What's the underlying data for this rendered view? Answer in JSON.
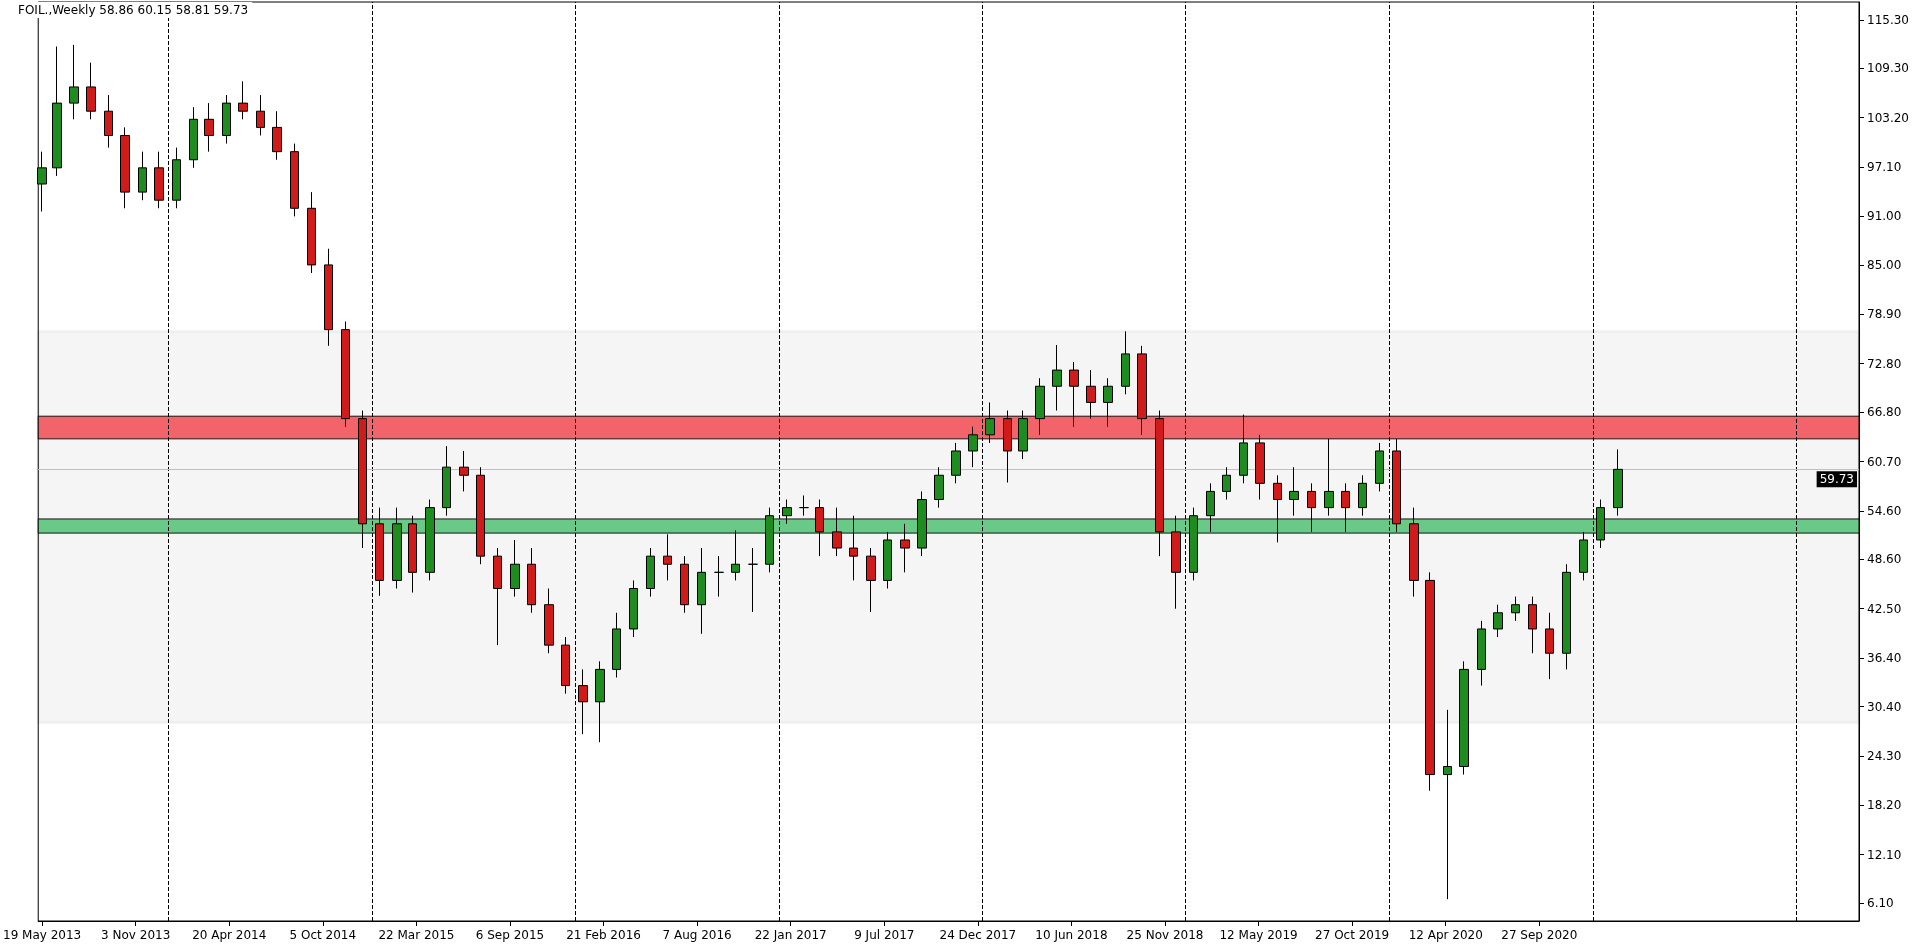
{
  "chart_data": {
    "type": "candlestick",
    "title": "FOIL.,Weekly 58.86 60.15 58.81 59.73",
    "x": [
      "2013-05-19",
      "2013-06-15",
      "2013-07-15",
      "2013-08-15",
      "2013-09-15",
      "2013-10-15",
      "2013-11-15",
      "2013-12-15",
      "2014-01-15",
      "2014-02-15",
      "2014-03-15",
      "2014-04-15",
      "2014-05-15",
      "2014-06-15",
      "2014-07-15",
      "2014-08-15",
      "2014-09-15",
      "2014-10-15",
      "2014-11-15",
      "2014-12-15",
      "2015-01-15",
      "2015-02-15",
      "2015-03-15",
      "2015-04-15",
      "2015-05-15",
      "2015-06-15",
      "2015-07-15",
      "2015-08-15",
      "2015-09-15",
      "2015-10-15",
      "2015-11-15",
      "2015-12-15",
      "2016-01-15",
      "2016-02-15",
      "2016-03-15",
      "2016-04-15",
      "2016-05-15",
      "2016-06-15",
      "2016-07-15",
      "2016-08-15",
      "2016-09-15",
      "2016-10-15",
      "2016-11-15",
      "2016-12-15",
      "2017-01-15",
      "2017-02-15",
      "2017-03-15",
      "2017-04-15",
      "2017-05-15",
      "2017-06-15",
      "2017-07-15",
      "2017-08-15",
      "2017-09-15",
      "2017-10-15",
      "2017-11-15",
      "2017-12-15",
      "2018-01-15",
      "2018-02-15",
      "2018-03-15",
      "2018-04-15",
      "2018-05-15",
      "2018-06-15",
      "2018-07-15",
      "2018-08-15",
      "2018-09-15",
      "2018-10-15",
      "2018-11-15",
      "2018-12-15",
      "2019-01-15",
      "2019-02-15",
      "2019-03-15",
      "2019-04-15",
      "2019-05-15",
      "2019-06-15",
      "2019-07-15",
      "2019-08-15",
      "2019-09-15",
      "2019-10-15",
      "2019-11-15",
      "2019-12-15",
      "2020-01-15",
      "2020-02-15",
      "2020-03-15",
      "2020-04-15",
      "2020-05-15",
      "2020-06-15",
      "2020-07-15",
      "2020-08-15",
      "2020-09-15",
      "2020-10-15",
      "2020-11-15",
      "2020-12-15",
      "2021-01-15",
      "2021-02-15"
    ],
    "ohlc": [
      [
        95,
        99,
        91.6,
        97
      ],
      [
        97,
        112,
        96,
        105
      ],
      [
        105,
        112.2,
        103,
        107
      ],
      [
        107,
        110,
        103,
        104
      ],
      [
        104,
        106,
        99.5,
        101
      ],
      [
        101,
        102,
        92,
        94
      ],
      [
        94,
        99,
        93,
        97
      ],
      [
        97,
        99,
        92,
        93
      ],
      [
        93,
        99.5,
        92,
        98
      ],
      [
        98,
        104.5,
        97,
        103
      ],
      [
        103,
        105,
        99,
        101
      ],
      [
        101,
        106,
        100,
        105
      ],
      [
        105,
        107.7,
        103,
        104
      ],
      [
        104,
        106,
        101,
        102
      ],
      [
        102,
        104,
        98,
        99
      ],
      [
        99,
        100,
        91,
        92
      ],
      [
        92,
        94,
        84,
        85
      ],
      [
        85,
        87,
        75,
        77
      ],
      [
        77,
        78,
        65,
        66
      ],
      [
        66,
        67,
        50,
        53
      ],
      [
        53,
        55,
        44.1,
        46
      ],
      [
        46,
        55,
        45,
        53
      ],
      [
        53,
        54,
        44.5,
        47
      ],
      [
        47,
        56,
        46,
        55
      ],
      [
        55,
        62.6,
        54,
        60
      ],
      [
        60,
        62,
        57,
        59
      ],
      [
        59,
        60,
        48,
        49
      ],
      [
        49,
        50,
        38,
        45
      ],
      [
        45,
        51,
        44,
        48
      ],
      [
        48,
        50,
        42,
        43
      ],
      [
        43,
        45,
        37,
        38
      ],
      [
        38,
        39,
        32,
        33
      ],
      [
        33,
        35,
        27,
        31
      ],
      [
        31,
        36,
        26,
        35
      ],
      [
        35,
        42,
        34,
        40
      ],
      [
        40,
        46,
        39,
        45
      ],
      [
        45,
        50,
        44,
        49
      ],
      [
        49,
        51.7,
        46,
        48
      ],
      [
        48,
        49,
        42,
        43
      ],
      [
        43,
        50,
        39.4,
        47
      ],
      [
        47,
        49,
        44,
        47
      ],
      [
        47,
        52.2,
        46,
        48
      ],
      [
        48,
        50,
        42.1,
        48
      ],
      [
        48,
        55,
        47,
        54
      ],
      [
        54,
        56,
        53,
        55
      ],
      [
        55,
        56.5,
        54,
        55
      ],
      [
        55,
        56,
        49,
        52
      ],
      [
        52,
        55,
        49,
        50
      ],
      [
        50,
        54,
        46,
        49
      ],
      [
        49,
        50,
        42.1,
        46
      ],
      [
        46,
        52,
        45,
        51
      ],
      [
        51,
        53,
        47,
        50
      ],
      [
        50,
        57,
        49,
        56
      ],
      [
        56,
        60,
        55,
        59
      ],
      [
        59,
        63,
        58,
        62
      ],
      [
        62,
        65,
        60,
        64
      ],
      [
        64,
        68,
        63,
        66
      ],
      [
        66,
        67,
        58.1,
        62
      ],
      [
        62,
        67,
        61,
        66
      ],
      [
        66,
        71,
        64,
        70
      ],
      [
        70,
        75.1,
        67,
        72
      ],
      [
        72,
        73,
        65,
        70
      ],
      [
        70,
        72,
        66,
        68
      ],
      [
        68,
        71,
        65,
        70
      ],
      [
        70,
        76.8,
        69,
        74
      ],
      [
        74,
        75,
        64,
        66
      ],
      [
        66,
        67,
        49,
        52
      ],
      [
        52,
        54,
        42.5,
        47
      ],
      [
        47,
        55,
        46,
        54
      ],
      [
        54,
        58,
        52,
        57
      ],
      [
        57,
        60,
        56,
        59
      ],
      [
        59,
        66.5,
        58,
        63
      ],
      [
        63,
        64,
        56,
        58
      ],
      [
        58,
        59,
        50.7,
        56
      ],
      [
        56,
        60,
        54,
        57
      ],
      [
        57,
        58,
        52,
        55
      ],
      [
        55,
        63.5,
        54,
        57
      ],
      [
        57,
        58,
        52,
        55
      ],
      [
        55,
        59,
        54,
        58
      ],
      [
        58,
        63,
        57,
        62
      ],
      [
        62,
        63.5,
        52,
        53
      ],
      [
        53,
        55,
        44,
        46
      ],
      [
        46,
        47,
        20,
        22
      ],
      [
        22,
        30,
        6.6,
        23
      ],
      [
        23,
        36,
        22,
        35
      ],
      [
        35,
        41,
        33,
        40
      ],
      [
        40,
        43,
        39,
        42
      ],
      [
        42,
        44,
        41,
        43
      ],
      [
        43,
        44,
        37,
        40
      ],
      [
        40,
        42,
        33.8,
        37
      ],
      [
        37,
        48,
        35,
        47
      ],
      [
        47,
        52,
        46,
        51
      ],
      [
        51,
        56,
        50,
        55
      ],
      [
        55,
        62.2,
        54,
        59.73
      ]
    ],
    "xlim": [
      "2013-05-12",
      "2022-04-24"
    ],
    "xticks": [
      {
        "value": "2013-05-19",
        "label": "19 May 2013"
      },
      {
        "value": "2013-11-03",
        "label": "3 Nov 2013"
      },
      {
        "value": "2014-04-20",
        "label": "20 Apr 2014"
      },
      {
        "value": "2014-10-05",
        "label": "5 Oct 2014"
      },
      {
        "value": "2015-03-22",
        "label": "22 Mar 2015"
      },
      {
        "value": "2015-09-06",
        "label": "6 Sep 2015"
      },
      {
        "value": "2016-02-21",
        "label": "21 Feb 2016"
      },
      {
        "value": "2016-08-07",
        "label": "7 Aug 2016"
      },
      {
        "value": "2017-01-22",
        "label": "22 Jan 2017"
      },
      {
        "value": "2017-07-09",
        "label": "9 Jul 2017"
      },
      {
        "value": "2017-12-24",
        "label": "24 Dec 2017"
      },
      {
        "value": "2018-06-10",
        "label": "10 Jun 2018"
      },
      {
        "value": "2018-11-25",
        "label": "25 Nov 2018"
      },
      {
        "value": "2019-05-12",
        "label": "12 May 2019"
      },
      {
        "value": "2019-10-27",
        "label": "27 Oct 2019"
      },
      {
        "value": "2020-04-12",
        "label": "12 Apr 2020"
      },
      {
        "value": "2020-09-27",
        "label": "27 Sep 2020"
      }
    ],
    "ylim": [
      3.9,
      117.5
    ],
    "yticks": [
      {
        "value": 6.1,
        "label": "6.10"
      },
      {
        "value": 12.1,
        "label": "12.10"
      },
      {
        "value": 18.2,
        "label": "18.20"
      },
      {
        "value": 24.3,
        "label": "24.30"
      },
      {
        "value": 30.4,
        "label": "30.40"
      },
      {
        "value": 36.4,
        "label": "36.40"
      },
      {
        "value": 42.5,
        "label": "42.50"
      },
      {
        "value": 48.6,
        "label": "48.60"
      },
      {
        "value": 54.6,
        "label": "54.60"
      },
      {
        "value": 60.7,
        "label": "60.70"
      },
      {
        "value": 66.8,
        "label": "66.80"
      },
      {
        "value": 72.8,
        "label": "72.80"
      },
      {
        "value": 78.9,
        "label": "78.90"
      },
      {
        "value": 85,
        "label": "85.00"
      },
      {
        "value": 91,
        "label": "91.00"
      },
      {
        "value": 97.1,
        "label": "97.10"
      },
      {
        "value": 103.2,
        "label": "103.20"
      },
      {
        "value": 109.3,
        "label": "109.30"
      },
      {
        "value": 115.3,
        "label": "115.30"
      }
    ],
    "ref_lines": [
      {
        "axis": "x",
        "value": "2014-01-01",
        "color": "#000000",
        "line_style": "dashed"
      },
      {
        "axis": "x",
        "value": "2015-01-01",
        "color": "#000000",
        "line_style": "dashed"
      },
      {
        "axis": "x",
        "value": "2016-01-01",
        "color": "#000000",
        "line_style": "dashed"
      },
      {
        "axis": "x",
        "value": "2017-01-01",
        "color": "#000000",
        "line_style": "dashed"
      },
      {
        "axis": "x",
        "value": "2018-01-01",
        "color": "#000000",
        "line_style": "dashed"
      },
      {
        "axis": "x",
        "value": "2019-01-01",
        "color": "#000000",
        "line_style": "dashed"
      },
      {
        "axis": "x",
        "value": "2020-01-01",
        "color": "#000000",
        "line_style": "dashed"
      },
      {
        "axis": "x",
        "value": "2021-01-01",
        "color": "#000000",
        "line_style": "dashed"
      },
      {
        "axis": "x",
        "value": "2022-01-01",
        "color": "#000000",
        "line_style": "dashed"
      },
      {
        "axis": "y",
        "value": 59.73,
        "label": "59.73",
        "color": "#c0c0c0",
        "line_style": "solid"
      }
    ],
    "bands": [
      {
        "axis": "y",
        "from": 28.4,
        "to": 76.8,
        "color": "#000000"
      },
      {
        "axis": "y",
        "from": 63.5,
        "to": 66.3,
        "color": "#f2545b"
      },
      {
        "axis": "y",
        "from": 51.85,
        "to": 53.6,
        "color": "#5ac47a"
      }
    ],
    "grid": false
  }
}
